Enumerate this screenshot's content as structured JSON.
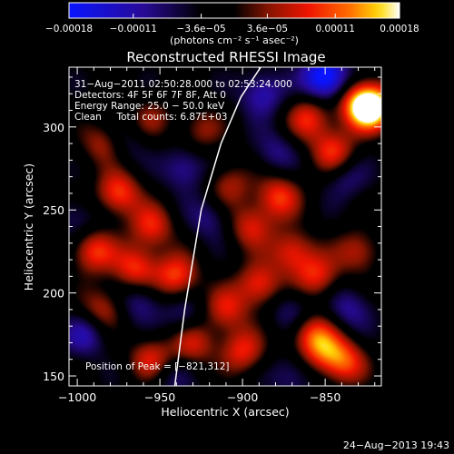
{
  "colorbar": {
    "ticks": [
      "−0.00018",
      "−0.00011",
      "−3.6e−05",
      "3.6e−05",
      "0.00011",
      "0.00018"
    ],
    "tick_values": [
      -0.00018,
      -0.00011,
      -3.6e-05,
      3.6e-05,
      0.00011,
      0.00018
    ],
    "units": "(photons cm⁻² s⁻¹ asec⁻²)",
    "range": [
      -0.00018,
      0.00018
    ],
    "colormap": "blue-black-red-yellow-white"
  },
  "chart_data": {
    "type": "heatmap",
    "title": "Reconstructed RHESSI Image",
    "xlabel": "Heliocentric X (arcsec)",
    "ylabel": "Heliocentric Y (arcsec)",
    "xlim": [
      -1005,
      -816
    ],
    "ylim": [
      144,
      336
    ],
    "x_ticks": [
      -1000,
      -950,
      -900,
      -850
    ],
    "x_tick_labels": [
      "−1000",
      "−950",
      "−900",
      "−850"
    ],
    "y_ticks": [
      150,
      200,
      250,
      300
    ],
    "y_tick_labels": [
      "150",
      "200",
      "250",
      "300"
    ],
    "annotations": [
      "31−Aug−2011 02:50:28.000 to 02:53:24.000",
      "Detectors: 4F 5F 6F 7F 8F, Att 0",
      "Energy Range: 25.0 − 50.0 keV",
      "Clean     Total counts: 6.87E+03"
    ],
    "peak_label": "Position of Peak = [−821,312]",
    "peak_position": [
      -821,
      312
    ],
    "limb_curve_x": [
      -941,
      -935,
      -925,
      -913,
      -901,
      -889
    ],
    "limb_curve_y": [
      144,
      190,
      250,
      290,
      318,
      336
    ],
    "blobs": [
      {
        "x": -821,
        "y": 312,
        "v": 0.00018
      },
      {
        "x": -828,
        "y": 313,
        "v": 0.00015
      },
      {
        "x": -845,
        "y": 285,
        "v": 0.00012
      },
      {
        "x": -860,
        "y": 305,
        "v": 0.00011
      },
      {
        "x": -878,
        "y": 258,
        "v": 0.00012
      },
      {
        "x": -895,
        "y": 240,
        "v": 0.0001
      },
      {
        "x": -870,
        "y": 225,
        "v": 0.00011
      },
      {
        "x": -855,
        "y": 210,
        "v": 0.00011
      },
      {
        "x": -890,
        "y": 205,
        "v": 0.00012
      },
      {
        "x": -910,
        "y": 190,
        "v": 0.0001
      },
      {
        "x": -975,
        "y": 260,
        "v": 0.00013
      },
      {
        "x": -955,
        "y": 240,
        "v": 0.00011
      },
      {
        "x": -990,
        "y": 225,
        "v": 0.00012
      },
      {
        "x": -965,
        "y": 215,
        "v": 0.00012
      },
      {
        "x": -940,
        "y": 210,
        "v": 0.00013
      },
      {
        "x": -955,
        "y": 160,
        "v": 0.00011
      },
      {
        "x": -985,
        "y": 190,
        "v": 9e-05
      },
      {
        "x": -930,
        "y": 170,
        "v": 0.0001
      },
      {
        "x": -900,
        "y": 165,
        "v": 0.00011
      },
      {
        "x": -858,
        "y": 175,
        "v": 0.00011
      },
      {
        "x": -838,
        "y": 158,
        "v": 0.00012
      },
      {
        "x": -830,
        "y": 225,
        "v": 9e-05
      },
      {
        "x": -850,
        "y": 165,
        "v": 0.0001
      },
      {
        "x": -908,
        "y": 265,
        "v": 8e-05
      },
      {
        "x": -925,
        "y": 298,
        "v": 7e-05
      },
      {
        "x": -985,
        "y": 290,
        "v": 8e-05
      },
      {
        "x": -955,
        "y": 305,
        "v": 6e-05
      },
      {
        "x": -850,
        "y": 330,
        "v": -0.00018
      },
      {
        "x": -888,
        "y": 320,
        "v": -9e-05
      },
      {
        "x": -935,
        "y": 275,
        "v": -8e-05
      },
      {
        "x": -920,
        "y": 245,
        "v": -6e-05
      },
      {
        "x": -995,
        "y": 175,
        "v": -8e-05
      },
      {
        "x": -962,
        "y": 195,
        "v": -7e-05
      },
      {
        "x": -935,
        "y": 185,
        "v": -6e-05
      },
      {
        "x": -870,
        "y": 190,
        "v": -6e-05
      },
      {
        "x": -838,
        "y": 270,
        "v": -6e-05
      },
      {
        "x": -835,
        "y": 190,
        "v": -7e-05
      },
      {
        "x": -880,
        "y": 285,
        "v": -6e-05
      },
      {
        "x": -945,
        "y": 150,
        "v": -5e-05
      },
      {
        "x": -870,
        "y": 150,
        "v": -6e-05
      },
      {
        "x": -1000,
        "y": 245,
        "v": -5e-05
      },
      {
        "x": -970,
        "y": 290,
        "v": -4e-05
      }
    ]
  },
  "footer": {
    "timestamp": "24−Aug−2013 19:43"
  }
}
